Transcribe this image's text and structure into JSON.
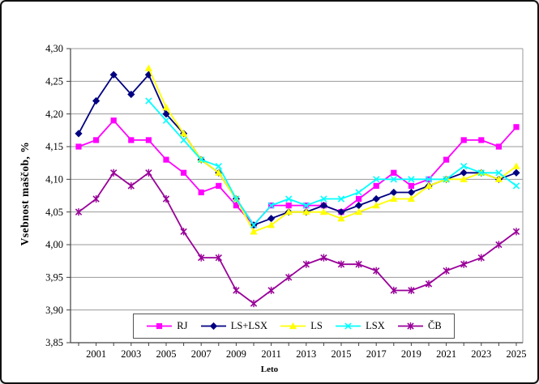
{
  "chart_data": {
    "type": "line",
    "title": "",
    "xlabel": "Leto",
    "ylabel": "Vsebnost maščob, %",
    "ylim": [
      3.85,
      4.3
    ],
    "grid": "horizontal",
    "legend_position": "bottom-inside",
    "x": [
      2000,
      2001,
      2002,
      2003,
      2004,
      2005,
      2006,
      2007,
      2008,
      2009,
      2010,
      2011,
      2012,
      2013,
      2014,
      2015,
      2016,
      2017,
      2018,
      2019,
      2020,
      2021,
      2022,
      2023,
      2024,
      2025
    ],
    "x_tick_labels": [
      "2001",
      "2003",
      "2005",
      "2007",
      "2009",
      "2011",
      "2013",
      "2015",
      "2017",
      "2019",
      "2021",
      "2023",
      "2025"
    ],
    "y_ticks": [
      {
        "value": 3.85,
        "label": "3,85"
      },
      {
        "value": 3.9,
        "label": "3,90"
      },
      {
        "value": 3.95,
        "label": "3,95"
      },
      {
        "value": 4.0,
        "label": "4,00"
      },
      {
        "value": 4.05,
        "label": "4,05"
      },
      {
        "value": 4.1,
        "label": "4,10"
      },
      {
        "value": 4.15,
        "label": "4,15"
      },
      {
        "value": 4.2,
        "label": "4,20"
      },
      {
        "value": 4.25,
        "label": "4,25"
      },
      {
        "value": 4.3,
        "label": "4,30"
      }
    ],
    "series": [
      {
        "name": "RJ",
        "color": "#FF00FF",
        "marker": "square",
        "values": [
          4.15,
          4.16,
          4.19,
          4.16,
          4.16,
          4.13,
          4.11,
          4.08,
          4.09,
          4.06,
          4.03,
          4.06,
          4.06,
          4.06,
          4.06,
          4.05,
          4.07,
          4.09,
          4.11,
          4.09,
          4.1,
          4.13,
          4.16,
          4.16,
          4.15,
          4.18
        ]
      },
      {
        "name": "LS+LSX",
        "color": "#000080",
        "marker": "diamond",
        "values": [
          4.17,
          4.22,
          4.26,
          4.23,
          4.26,
          4.2,
          4.17,
          4.13,
          4.11,
          4.07,
          4.03,
          4.04,
          4.05,
          4.05,
          4.06,
          4.05,
          4.06,
          4.07,
          4.08,
          4.08,
          4.09,
          4.1,
          4.11,
          4.11,
          4.1,
          4.11
        ]
      },
      {
        "name": "LS",
        "color": "#FFFF00",
        "marker": "triangle",
        "values": [
          null,
          null,
          null,
          null,
          4.27,
          4.21,
          4.17,
          4.13,
          4.11,
          4.07,
          4.02,
          4.03,
          4.05,
          4.05,
          4.05,
          4.04,
          4.05,
          4.06,
          4.07,
          4.07,
          4.09,
          4.1,
          4.1,
          4.11,
          4.1,
          4.12
        ]
      },
      {
        "name": "LSX",
        "color": "#00FFFF",
        "marker": "x",
        "values": [
          null,
          null,
          null,
          null,
          4.22,
          4.19,
          4.16,
          4.13,
          4.12,
          4.07,
          4.03,
          4.06,
          4.07,
          4.06,
          4.07,
          4.07,
          4.08,
          4.1,
          4.1,
          4.1,
          4.1,
          4.1,
          4.12,
          4.11,
          4.11,
          4.09
        ]
      },
      {
        "name": "ČB",
        "color": "#990099",
        "marker": "star",
        "values": [
          4.05,
          4.07,
          4.11,
          4.09,
          4.11,
          4.07,
          4.02,
          3.98,
          3.98,
          3.93,
          3.91,
          3.93,
          3.95,
          3.97,
          3.98,
          3.97,
          3.97,
          3.96,
          3.93,
          3.93,
          3.94,
          3.96,
          3.97,
          3.98,
          4.0,
          4.02
        ]
      }
    ]
  }
}
